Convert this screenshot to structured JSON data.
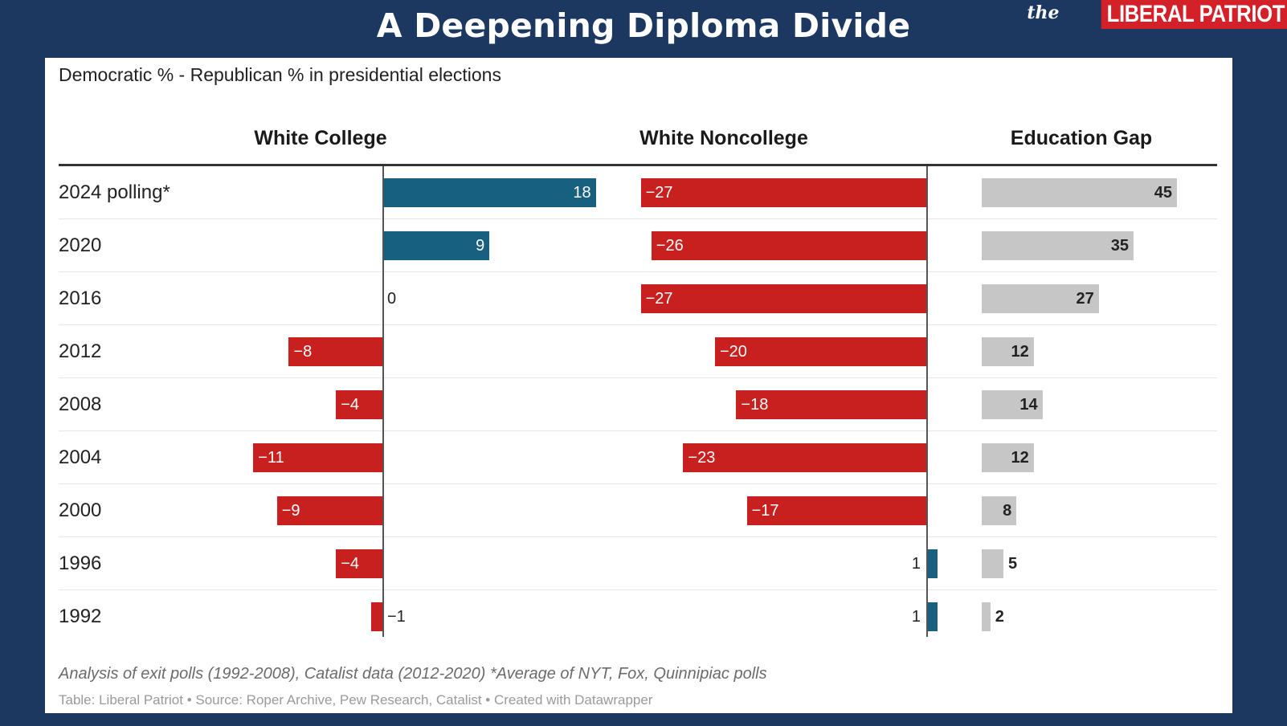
{
  "header": {
    "title": "A Deepening Diploma Divide",
    "logo_prefix": "the",
    "logo_text": "LIBERAL PATRIOT"
  },
  "subtitle": "Democratic % - Republican % in presidential elections",
  "footer": {
    "note": "Analysis of exit polls (1992-2008), Catalist data (2012-2020) *Average of NYT, Fox, Quinnipiac polls",
    "credit": "Table: Liberal Patriot • Source: Roper Archive, Pew Research, Catalist • Created with Datawrapper"
  },
  "colors": {
    "background": "#1c3760",
    "positive": "#17607f",
    "negative": "#c8201f",
    "gap": "#c6c6c6"
  },
  "chart_data": {
    "type": "bar",
    "categories": [
      "2024 polling*",
      "2020",
      "2016",
      "2012",
      "2008",
      "2004",
      "2000",
      "1996",
      "1992"
    ],
    "series": [
      {
        "name": "White College",
        "values": [
          18,
          9,
          0,
          -8,
          -4,
          -11,
          -9,
          -4,
          -1
        ]
      },
      {
        "name": "White Noncollege",
        "values": [
          -27,
          -26,
          -27,
          -20,
          -18,
          -23,
          -17,
          1,
          1
        ]
      },
      {
        "name": "Education Gap",
        "values": [
          45,
          35,
          27,
          12,
          14,
          12,
          8,
          5,
          2
        ]
      }
    ],
    "title": "A Deepening Diploma Divide",
    "subtitle": "Democratic % - Republican % in presidential elections",
    "grid": false,
    "legend": "none"
  }
}
